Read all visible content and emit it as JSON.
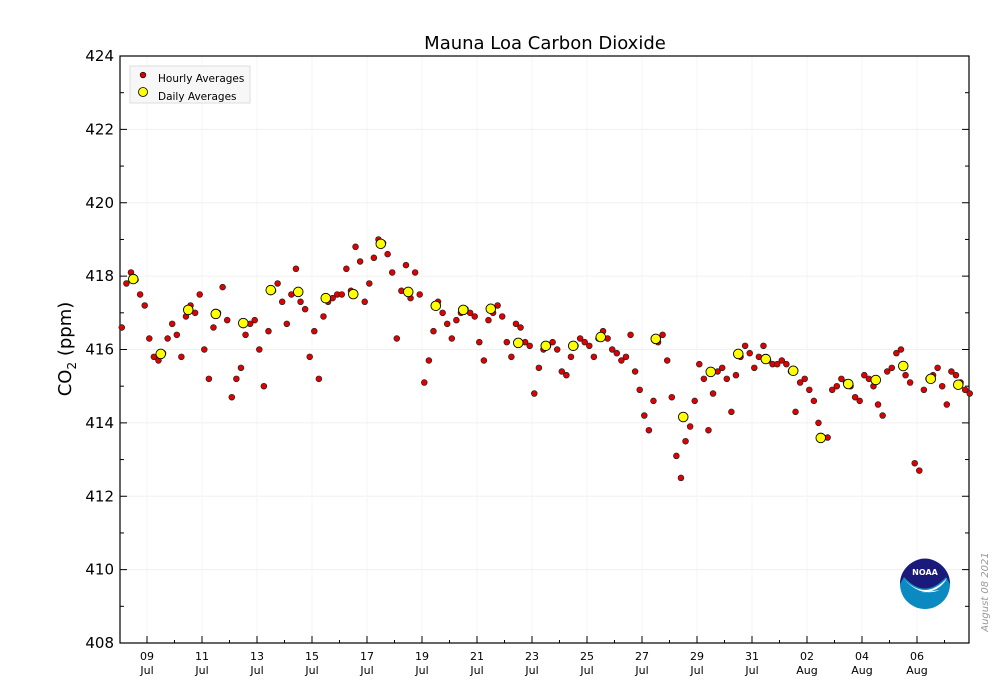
{
  "chart_data": {
    "type": "scatter",
    "title": "Mauna Loa Carbon Dioxide",
    "ylabel": "CO2 (ppm)",
    "ylabel_main": "CO",
    "ylabel_sub": "2",
    "ylabel_unit": " (ppm)",
    "xlabel": "",
    "ylim": [
      408,
      424
    ],
    "y_ticks": [
      "408",
      "410",
      "412",
      "414",
      "416",
      "418",
      "420",
      "422",
      "424"
    ],
    "x_range_days": [
      "Jul 08",
      "Aug 07 (end)"
    ],
    "x_ticks": [
      {
        "day": "09",
        "month": "Jul"
      },
      {
        "day": "11",
        "month": "Jul"
      },
      {
        "day": "13",
        "month": "Jul"
      },
      {
        "day": "15",
        "month": "Jul"
      },
      {
        "day": "17",
        "month": "Jul"
      },
      {
        "day": "19",
        "month": "Jul"
      },
      {
        "day": "21",
        "month": "Jul"
      },
      {
        "day": "23",
        "month": "Jul"
      },
      {
        "day": "25",
        "month": "Jul"
      },
      {
        "day": "27",
        "month": "Jul"
      },
      {
        "day": "29",
        "month": "Jul"
      },
      {
        "day": "31",
        "month": "Jul"
      },
      {
        "day": "02",
        "month": "Aug"
      },
      {
        "day": "04",
        "month": "Aug"
      },
      {
        "day": "06",
        "month": "Aug"
      }
    ],
    "grid": true,
    "legend": {
      "placement": "top-left",
      "entries": [
        "Hourly Averages",
        "Daily Averages"
      ]
    },
    "series": [
      {
        "name": "Hourly Averages",
        "color": "#e00000",
        "note": "values sampled every 4 hours (02,06,10,14,18,22 h) starting Jul 08",
        "values": [
          416.6,
          417.8,
          418.1,
          417.9,
          417.5,
          417.2,
          416.3,
          415.8,
          415.7,
          415.9,
          416.3,
          416.7,
          416.4,
          415.8,
          416.9,
          417.2,
          417.0,
          417.5,
          416.0,
          415.2,
          416.6,
          417.0,
          417.7,
          416.8,
          414.7,
          415.2,
          415.5,
          416.4,
          416.7,
          416.8,
          416.0,
          415.0,
          416.5,
          417.6,
          417.8,
          417.3,
          416.7,
          417.5,
          418.2,
          417.3,
          417.1,
          415.8,
          416.5,
          415.2,
          416.9,
          417.3,
          417.4,
          417.5,
          417.5,
          418.2,
          417.6,
          418.8,
          418.4,
          417.3,
          417.8,
          418.5,
          419.0,
          418.9,
          418.6,
          418.1,
          416.3,
          417.6,
          418.3,
          417.4,
          418.1,
          417.5,
          415.1,
          415.7,
          416.5,
          417.3,
          417.0,
          416.7,
          416.3,
          416.8,
          417.0,
          417.1,
          417.0,
          416.9,
          416.2,
          415.7,
          416.8,
          417.0,
          417.2,
          416.9,
          416.2,
          415.8,
          416.7,
          416.6,
          416.2,
          416.1,
          414.8,
          415.5,
          416.0,
          416.1,
          416.2,
          416.0,
          415.4,
          415.3,
          415.8,
          416.1,
          416.3,
          416.2,
          416.1,
          415.8,
          416.3,
          416.5,
          416.3,
          416.0,
          415.9,
          415.7,
          415.8,
          416.4,
          415.4,
          414.9,
          414.2,
          413.8,
          414.6,
          416.2,
          416.4,
          415.7,
          414.7,
          413.1,
          412.5,
          413.5,
          413.9,
          414.6,
          415.6,
          415.2,
          413.8,
          414.8,
          415.4,
          415.5,
          415.2,
          414.3,
          415.3,
          415.8,
          416.1,
          415.9,
          415.5,
          415.8,
          416.1,
          415.7,
          415.6,
          415.6,
          415.7,
          415.6,
          415.4,
          414.3,
          415.1,
          415.2,
          414.9,
          414.6,
          414.0,
          413.6,
          413.6,
          414.9,
          415.0,
          415.2,
          415.1,
          415.0,
          414.7,
          414.6,
          415.3,
          415.2,
          415.0,
          414.5,
          414.2,
          415.4,
          415.5,
          415.9,
          416.0,
          415.3,
          415.1,
          412.9,
          412.7,
          414.9,
          415.2,
          415.3,
          415.5,
          415.0,
          414.5,
          415.4,
          415.3,
          415.1,
          414.9,
          414.8
        ]
      },
      {
        "name": "Daily Averages",
        "color": "#ffff00",
        "note": "one value per day starting Jul 08; null = no daily average",
        "values": [
          417.92,
          415.88,
          417.08,
          416.97,
          416.72,
          417.62,
          417.57,
          417.4,
          417.51,
          418.88,
          417.57,
          417.19,
          417.08,
          417.11,
          416.18,
          416.1,
          416.1,
          416.34,
          null,
          416.29,
          414.16,
          415.39,
          415.88,
          415.74,
          415.42,
          413.59,
          415.06,
          415.17,
          415.55,
          415.2,
          415.04
        ]
      }
    ]
  },
  "date_stamp": "August 08 2021",
  "logo_text": "NOAA"
}
